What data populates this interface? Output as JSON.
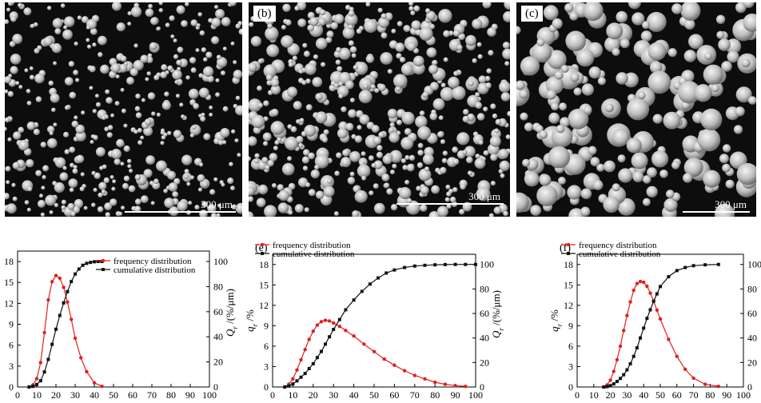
{
  "micrographs": [
    {
      "id": "a",
      "label": "",
      "scale_label": "300 μm"
    },
    {
      "id": "b",
      "label": "(b)",
      "scale_label": "300 μm"
    },
    {
      "id": "c",
      "label": "(c)",
      "scale_label": "300 μm"
    }
  ],
  "chart_data": [
    {
      "type": "line",
      "panel_label": "",
      "x_ticks": [
        0,
        10,
        20,
        30,
        40,
        50,
        60,
        70,
        80,
        90,
        100
      ],
      "xlim": [
        0,
        100
      ],
      "y_left": {
        "label": "",
        "ticks": [
          0,
          3,
          6,
          9,
          12,
          15,
          18
        ],
        "ylim": [
          0,
          19.5
        ]
      },
      "y_right": {
        "label": "Q_r /(%/μm)",
        "ticks": [
          0,
          20,
          40,
          60,
          80,
          100
        ],
        "ylim": [
          0,
          108.3
        ]
      },
      "series": [
        {
          "name": "frequency distribution",
          "axis": "left",
          "color": "#e02020",
          "marker": "circle",
          "x": [
            6,
            8,
            10,
            12,
            14,
            16,
            18,
            20,
            22,
            24,
            26,
            28,
            30,
            33,
            36,
            40,
            44
          ],
          "y": [
            0,
            0.3,
            1.2,
            3.5,
            7.8,
            12.5,
            15.1,
            16.0,
            15.6,
            14.3,
            12.2,
            9.7,
            7.0,
            4.2,
            2.2,
            0.6,
            0.1
          ]
        },
        {
          "name": "cumulative distribution",
          "axis": "right",
          "color": "#111111",
          "marker": "square",
          "x": [
            6,
            8,
            10,
            12,
            14,
            16,
            18,
            20,
            22,
            24,
            26,
            28,
            30,
            32,
            34,
            36,
            38,
            40,
            42,
            44
          ],
          "y": [
            0,
            0.5,
            2,
            5,
            12,
            22,
            34,
            46,
            57,
            67,
            76,
            84,
            90,
            94,
            97,
            98.5,
            99.3,
            99.8,
            100,
            100
          ]
        }
      ]
    },
    {
      "type": "line",
      "panel_label": "(e)",
      "x_ticks": [
        0,
        10,
        20,
        30,
        40,
        50,
        60,
        70,
        80,
        90,
        100
      ],
      "xlim": [
        0,
        100
      ],
      "y_left": {
        "label": "q_r /%",
        "ticks": [
          0,
          3,
          6,
          9,
          12,
          15,
          18
        ],
        "ylim": [
          0,
          19.5
        ]
      },
      "y_right": {
        "label": "Q_r /(%/μm)",
        "ticks": [
          0,
          20,
          40,
          60,
          80,
          100
        ],
        "ylim": [
          0,
          108.3
        ]
      },
      "series": [
        {
          "name": "frequency distribution",
          "axis": "left",
          "color": "#e02020",
          "marker": "circle",
          "x": [
            6,
            8,
            10,
            12,
            14,
            16,
            18,
            20,
            22,
            24,
            26,
            28,
            30,
            33,
            36,
            40,
            45,
            50,
            55,
            60,
            65,
            70,
            75,
            80,
            85,
            90,
            95
          ],
          "y": [
            0,
            0.4,
            1.2,
            2.5,
            4.0,
            5.5,
            7.0,
            8.2,
            9.1,
            9.6,
            9.8,
            9.7,
            9.4,
            8.9,
            8.3,
            7.5,
            6.3,
            5.2,
            4.1,
            3.2,
            2.4,
            1.7,
            1.2,
            0.7,
            0.4,
            0.2,
            0.1
          ]
        },
        {
          "name": "cumulative distribution",
          "axis": "right",
          "color": "#111111",
          "marker": "square",
          "x": [
            6,
            8,
            10,
            12,
            14,
            16,
            18,
            20,
            22,
            24,
            26,
            28,
            30,
            33,
            36,
            40,
            44,
            48,
            52,
            56,
            60,
            65,
            70,
            75,
            80,
            85,
            90,
            95,
            100
          ],
          "y": [
            0,
            0.8,
            2.5,
            5,
            8,
            11,
            15,
            19,
            24,
            29,
            35,
            41,
            47,
            55,
            63,
            71,
            78,
            84,
            89,
            93,
            95.5,
            97.5,
            98.7,
            99.3,
            99.7,
            99.9,
            100,
            100,
            100
          ]
        }
      ]
    },
    {
      "type": "line",
      "panel_label": "(f)",
      "x_ticks": [
        0,
        10,
        20,
        30,
        40,
        50,
        60,
        70,
        80,
        90,
        100
      ],
      "xlim": [
        0,
        100
      ],
      "y_left": {
        "label": "q_r /%",
        "ticks": [
          0,
          3,
          6,
          9,
          12,
          15,
          18
        ],
        "ylim": [
          0,
          19.5
        ]
      },
      "y_right": {
        "label": "",
        "ticks": [
          0,
          20,
          40,
          60,
          80,
          100
        ],
        "ylim": [
          0,
          108.3
        ]
      },
      "series": [
        {
          "name": "frequency distribution",
          "axis": "left",
          "color": "#e02020",
          "marker": "circle",
          "x": [
            16,
            18,
            20,
            22,
            24,
            26,
            28,
            30,
            32,
            34,
            36,
            38,
            40,
            42,
            44,
            46,
            48,
            50,
            55,
            60,
            65,
            70,
            77,
            85
          ],
          "y": [
            0,
            0.3,
            1.0,
            2.3,
            4.0,
            6.0,
            8.3,
            10.5,
            12.5,
            14.2,
            15.2,
            15.5,
            15.4,
            14.8,
            13.8,
            12.6,
            11.3,
            10.0,
            7.0,
            4.5,
            2.6,
            1.3,
            0.4,
            0.1
          ]
        },
        {
          "name": "cumulative distribution",
          "axis": "right",
          "color": "#111111",
          "marker": "square",
          "x": [
            16,
            18,
            20,
            22,
            24,
            26,
            28,
            30,
            32,
            34,
            36,
            38,
            40,
            42,
            44,
            46,
            48,
            50,
            55,
            60,
            65,
            70,
            77,
            85
          ],
          "y": [
            0,
            0.3,
            1,
            2.5,
            4.5,
            7,
            10,
            14,
            19,
            25,
            32,
            40,
            48,
            56,
            63,
            70,
            76,
            82,
            90,
            95,
            97.5,
            99,
            99.7,
            100
          ]
        }
      ]
    }
  ]
}
